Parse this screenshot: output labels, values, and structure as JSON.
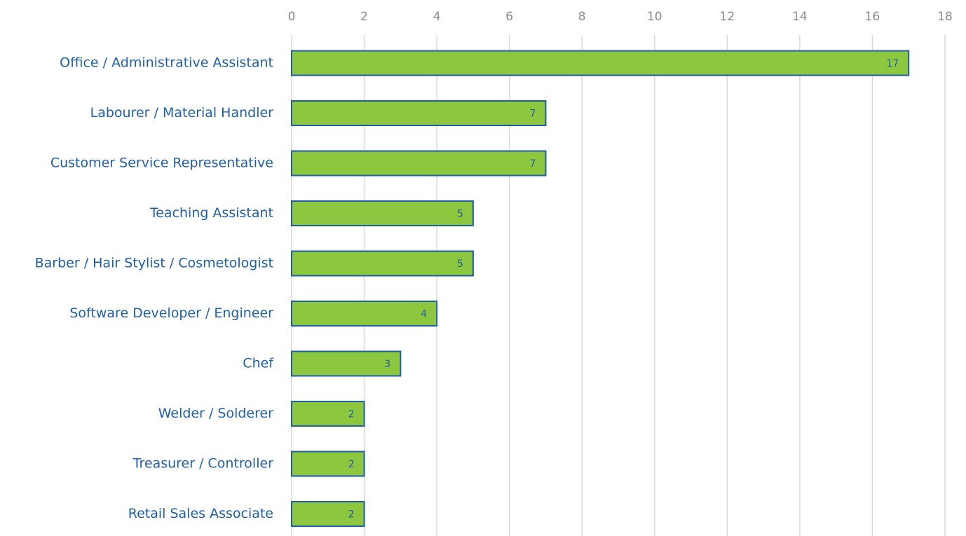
{
  "chart_data": {
    "type": "bar",
    "orientation": "horizontal",
    "categories": [
      "Office / Administrative Assistant",
      "Labourer / Material Handler",
      "Customer Service Representative",
      "Teaching Assistant",
      "Barber / Hair Stylist / Cosmetologist",
      "Software Developer / Engineer",
      "Chef",
      "Welder / Solderer",
      "Treasurer / Controller",
      "Retail Sales Associate"
    ],
    "values": [
      17,
      7,
      7,
      5,
      5,
      4,
      3,
      2,
      2,
      2
    ],
    "color": "#8dc63f",
    "edge_color": "#1f5fa8",
    "xlim": [
      0,
      18
    ],
    "xticks": [
      0,
      2,
      4,
      6,
      8,
      10,
      12,
      14,
      16,
      18
    ],
    "grid": true
  }
}
